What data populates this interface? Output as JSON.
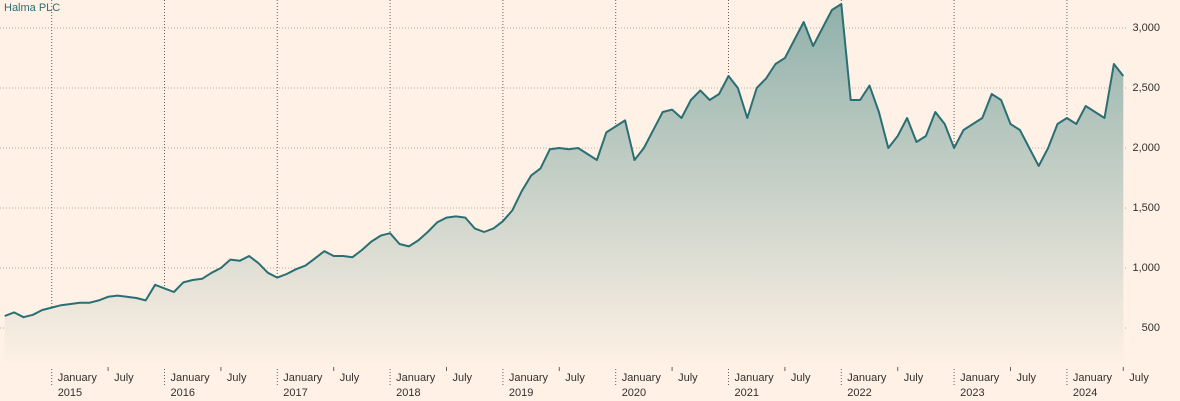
{
  "chart_data": {
    "type": "area",
    "title": "Halma PLC",
    "color": "#2a6f73",
    "grid": true,
    "xlim": [
      "2014-08",
      "2024-07"
    ],
    "ylim": [
      175,
      3233
    ],
    "yticks": [
      {
        "value": 500,
        "label": "500"
      },
      {
        "value": 1000,
        "label": "1,000"
      },
      {
        "value": 1500,
        "label": "1,500"
      },
      {
        "value": 2000,
        "label": "2,000"
      },
      {
        "value": 2500,
        "label": "2,500"
      },
      {
        "value": 3000,
        "label": "3,000"
      }
    ],
    "xticks": [
      {
        "value": "2015-01",
        "label": "January",
        "year": "2015"
      },
      {
        "value": "2015-07",
        "label": "July"
      },
      {
        "value": "2016-01",
        "label": "January",
        "year": "2016"
      },
      {
        "value": "2016-07",
        "label": "July"
      },
      {
        "value": "2017-01",
        "label": "January",
        "year": "2017"
      },
      {
        "value": "2017-07",
        "label": "July"
      },
      {
        "value": "2018-01",
        "label": "January",
        "year": "2018"
      },
      {
        "value": "2018-07",
        "label": "July"
      },
      {
        "value": "2019-01",
        "label": "January",
        "year": "2019"
      },
      {
        "value": "2019-07",
        "label": "July"
      },
      {
        "value": "2020-01",
        "label": "January",
        "year": "2020"
      },
      {
        "value": "2020-07",
        "label": "July"
      },
      {
        "value": "2021-01",
        "label": "January",
        "year": "2021"
      },
      {
        "value": "2021-07",
        "label": "July"
      },
      {
        "value": "2022-01",
        "label": "January",
        "year": "2022"
      },
      {
        "value": "2022-07",
        "label": "July"
      },
      {
        "value": "2023-01",
        "label": "January",
        "year": "2023"
      },
      {
        "value": "2023-07",
        "label": "July"
      },
      {
        "value": "2024-01",
        "label": "January",
        "year": "2024"
      },
      {
        "value": "2024-07",
        "label": "July"
      }
    ],
    "x": [
      "2014-08",
      "2014-09",
      "2014-10",
      "2014-11",
      "2014-12",
      "2015-01",
      "2015-02",
      "2015-03",
      "2015-04",
      "2015-05",
      "2015-06",
      "2015-07",
      "2015-08",
      "2015-09",
      "2015-10",
      "2015-11",
      "2015-12",
      "2016-01",
      "2016-02",
      "2016-03",
      "2016-04",
      "2016-05",
      "2016-06",
      "2016-07",
      "2016-08",
      "2016-09",
      "2016-10",
      "2016-11",
      "2016-12",
      "2017-01",
      "2017-02",
      "2017-03",
      "2017-04",
      "2017-05",
      "2017-06",
      "2017-07",
      "2017-08",
      "2017-09",
      "2017-10",
      "2017-11",
      "2017-12",
      "2018-01",
      "2018-02",
      "2018-03",
      "2018-04",
      "2018-05",
      "2018-06",
      "2018-07",
      "2018-08",
      "2018-09",
      "2018-10",
      "2018-11",
      "2018-12",
      "2019-01",
      "2019-02",
      "2019-03",
      "2019-04",
      "2019-05",
      "2019-06",
      "2019-07",
      "2019-08",
      "2019-09",
      "2019-10",
      "2019-11",
      "2019-12",
      "2020-01",
      "2020-02",
      "2020-03",
      "2020-04",
      "2020-05",
      "2020-06",
      "2020-07",
      "2020-08",
      "2020-09",
      "2020-10",
      "2020-11",
      "2020-12",
      "2021-01",
      "2021-02",
      "2021-03",
      "2021-04",
      "2021-05",
      "2021-06",
      "2021-07",
      "2021-08",
      "2021-09",
      "2021-10",
      "2021-11",
      "2021-12",
      "2022-01",
      "2022-02",
      "2022-03",
      "2022-04",
      "2022-05",
      "2022-06",
      "2022-07",
      "2022-08",
      "2022-09",
      "2022-10",
      "2022-11",
      "2022-12",
      "2023-01",
      "2023-02",
      "2023-03",
      "2023-04",
      "2023-05",
      "2023-06",
      "2023-07",
      "2023-08",
      "2023-09",
      "2023-10",
      "2023-11",
      "2023-12",
      "2024-01",
      "2024-02",
      "2024-03",
      "2024-04",
      "2024-05",
      "2024-06",
      "2024-07"
    ],
    "values": [
      600,
      630,
      590,
      610,
      650,
      670,
      690,
      700,
      710,
      710,
      730,
      760,
      770,
      760,
      750,
      730,
      860,
      830,
      800,
      880,
      900,
      910,
      960,
      1000,
      1070,
      1060,
      1100,
      1040,
      960,
      920,
      950,
      990,
      1020,
      1080,
      1140,
      1100,
      1100,
      1090,
      1150,
      1220,
      1270,
      1290,
      1200,
      1180,
      1230,
      1300,
      1380,
      1420,
      1430,
      1420,
      1330,
      1300,
      1330,
      1390,
      1480,
      1640,
      1770,
      1830,
      1990,
      2000,
      1990,
      2000,
      1950,
      1900,
      2130,
      2180,
      2230,
      1900,
      2000,
      2150,
      2300,
      2320,
      2250,
      2400,
      2480,
      2400,
      2450,
      2600,
      2500,
      2250,
      2500,
      2580,
      2700,
      2750,
      2900,
      3050,
      2850,
      3000,
      3150,
      3200,
      2400,
      2400,
      2520,
      2300,
      2000,
      2100,
      2250,
      2050,
      2100,
      2300,
      2200,
      2000,
      2150,
      2200,
      2250,
      2450,
      2400,
      2200,
      2150,
      2000,
      1850,
      2000,
      2200,
      2250,
      2200,
      2350,
      2300,
      2250,
      2700,
      2600
    ]
  }
}
